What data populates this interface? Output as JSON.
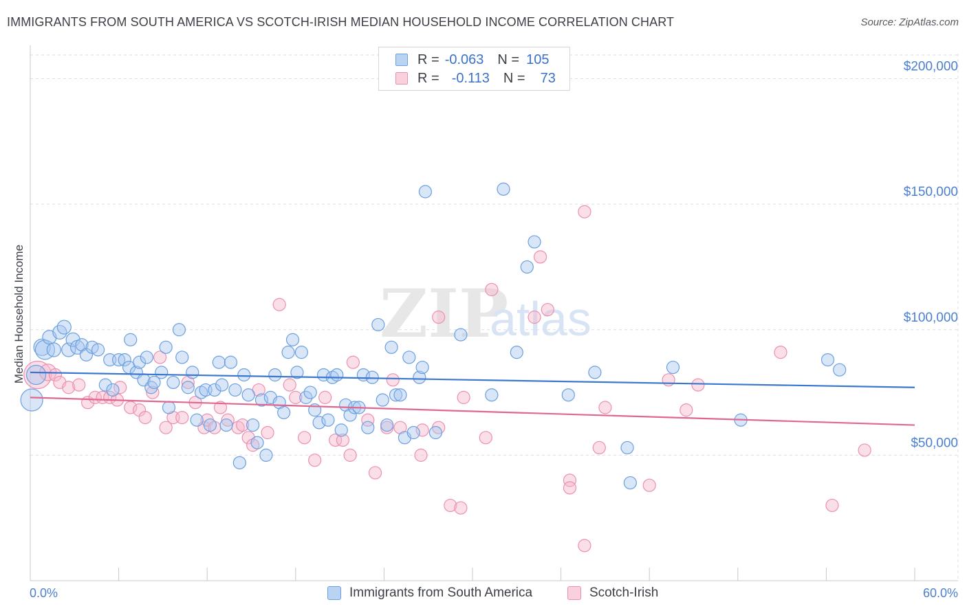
{
  "title": "IMMIGRANTS FROM SOUTH AMERICA VS SCOTCH-IRISH MEDIAN HOUSEHOLD INCOME CORRELATION CHART",
  "source": "Source: ZipAtlas.com",
  "watermark": {
    "zip": "ZIP",
    "atlas": "atlas"
  },
  "legend": {
    "rows": [
      {
        "r_label": "R =",
        "r_value": "-0.063",
        "n_label": "N =",
        "n_value": "105",
        "color": "#a8c8f0"
      },
      {
        "r_label": "R =",
        "r_value": "-0.113",
        "n_label": "N =",
        "n_value": "73",
        "color": "#f6b8cc"
      }
    ]
  },
  "bottom_legend": {
    "blue_label": "Immigrants from South America",
    "pink_label": "Scotch-Irish"
  },
  "chart_data": {
    "type": "scatter",
    "title": "IMMIGRANTS FROM SOUTH AMERICA VS SCOTCH-IRISH MEDIAN HOUSEHOLD INCOME CORRELATION CHART",
    "xlabel": "",
    "ylabel": "Median Household Income",
    "xlim": [
      0,
      60
    ],
    "ylim": [
      0,
      210000
    ],
    "x_tick_labels": [
      "0.0%",
      "60.0%"
    ],
    "y_ticks": [
      50000,
      100000,
      150000,
      200000
    ],
    "y_tick_labels": [
      "$50,000",
      "$100,000",
      "$150,000",
      "$200,000"
    ],
    "grid": true,
    "legend_position": "top-center",
    "colors": {
      "blue": "#6a9fe0",
      "blue_fill": "#a8c8f0",
      "pink": "#ec8fae",
      "pink_fill": "#f6b8cc",
      "blue_line": "#3a78d0",
      "pink_line": "#e06690"
    },
    "series": [
      {
        "name": "Immigrants from South America",
        "trend": {
          "x": [
            0,
            60
          ],
          "y": [
            83000,
            77000
          ]
        },
        "points": [
          [
            0.1,
            72000,
            16
          ],
          [
            0.4,
            82000,
            14
          ],
          [
            0.8,
            93000,
            12
          ],
          [
            1.0,
            92000,
            14
          ],
          [
            1.3,
            97000,
            10
          ],
          [
            1.6,
            92000,
            10
          ],
          [
            2.0,
            99000,
            10
          ],
          [
            2.3,
            101000,
            10
          ],
          [
            2.6,
            92000,
            10
          ],
          [
            2.9,
            96000,
            10
          ],
          [
            3.2,
            93000,
            10
          ],
          [
            3.5,
            94000,
            9
          ],
          [
            3.8,
            90000,
            9
          ],
          [
            4.2,
            93000,
            9
          ],
          [
            4.6,
            92000,
            9
          ],
          [
            5.1,
            78000,
            9
          ],
          [
            5.4,
            88000,
            9
          ],
          [
            5.6,
            76000,
            9
          ],
          [
            6.0,
            88000,
            9
          ],
          [
            6.4,
            88000,
            9
          ],
          [
            6.7,
            85000,
            9
          ],
          [
            6.8,
            96000,
            9
          ],
          [
            7.2,
            83000,
            9
          ],
          [
            7.4,
            87000,
            9
          ],
          [
            7.7,
            80000,
            9
          ],
          [
            7.9,
            89000,
            9
          ],
          [
            8.2,
            77000,
            9
          ],
          [
            8.4,
            79000,
            9
          ],
          [
            8.9,
            83000,
            9
          ],
          [
            9.2,
            93000,
            9
          ],
          [
            9.4,
            69000,
            9
          ],
          [
            9.7,
            79000,
            9
          ],
          [
            10.1,
            100000,
            9
          ],
          [
            10.3,
            89000,
            9
          ],
          [
            10.7,
            77000,
            9
          ],
          [
            11.0,
            83000,
            9
          ],
          [
            11.3,
            64000,
            9
          ],
          [
            11.6,
            75000,
            9
          ],
          [
            11.9,
            76000,
            9
          ],
          [
            12.2,
            62000,
            9
          ],
          [
            12.5,
            76000,
            9
          ],
          [
            12.8,
            87000,
            9
          ],
          [
            13.0,
            78000,
            9
          ],
          [
            13.3,
            62000,
            9
          ],
          [
            13.6,
            87000,
            9
          ],
          [
            13.9,
            76000,
            9
          ],
          [
            14.2,
            47000,
            9
          ],
          [
            14.5,
            82000,
            9
          ],
          [
            14.8,
            74000,
            9
          ],
          [
            15.1,
            62000,
            9
          ],
          [
            15.4,
            55000,
            9
          ],
          [
            15.7,
            72000,
            9
          ],
          [
            16.0,
            50000,
            9
          ],
          [
            16.3,
            73000,
            9
          ],
          [
            16.6,
            82000,
            9
          ],
          [
            16.9,
            71000,
            9
          ],
          [
            17.2,
            67000,
            9
          ],
          [
            17.5,
            91000,
            9
          ],
          [
            17.8,
            96000,
            9
          ],
          [
            18.1,
            83000,
            9
          ],
          [
            18.4,
            91000,
            9
          ],
          [
            18.7,
            73000,
            9
          ],
          [
            19.0,
            75000,
            9
          ],
          [
            19.3,
            68000,
            9
          ],
          [
            19.6,
            63000,
            9
          ],
          [
            19.9,
            82000,
            9
          ],
          [
            20.2,
            64000,
            9
          ],
          [
            20.5,
            81000,
            9
          ],
          [
            20.8,
            82000,
            9
          ],
          [
            21.1,
            60000,
            9
          ],
          [
            21.4,
            70000,
            9
          ],
          [
            21.7,
            66000,
            9
          ],
          [
            22.0,
            69000,
            9
          ],
          [
            22.3,
            69000,
            9
          ],
          [
            22.6,
            82000,
            9
          ],
          [
            22.9,
            61000,
            9
          ],
          [
            23.2,
            81000,
            9
          ],
          [
            23.6,
            102000,
            9
          ],
          [
            23.9,
            72000,
            9
          ],
          [
            24.2,
            62000,
            9
          ],
          [
            24.5,
            93000,
            9
          ],
          [
            24.8,
            74000,
            9
          ],
          [
            25.1,
            74000,
            9
          ],
          [
            25.4,
            57000,
            9
          ],
          [
            25.7,
            89000,
            9
          ],
          [
            26.0,
            59000,
            9
          ],
          [
            26.4,
            81000,
            9
          ],
          [
            26.6,
            85000,
            9
          ],
          [
            26.8,
            155000,
            9
          ],
          [
            27.5,
            59000,
            9
          ],
          [
            29.2,
            98000,
            9
          ],
          [
            31.3,
            74000,
            9
          ],
          [
            32.1,
            156000,
            9
          ],
          [
            33.0,
            91000,
            9
          ],
          [
            33.7,
            125000,
            9
          ],
          [
            34.2,
            135000,
            9
          ],
          [
            36.5,
            74000,
            9
          ],
          [
            38.3,
            83000,
            9
          ],
          [
            40.5,
            53000,
            9
          ],
          [
            40.7,
            39000,
            9
          ],
          [
            43.6,
            85000,
            9
          ],
          [
            48.2,
            64000,
            9
          ],
          [
            54.1,
            88000,
            9
          ],
          [
            54.9,
            84000,
            9
          ]
        ]
      },
      {
        "name": "Scotch-Irish",
        "trend": {
          "x": [
            0,
            60
          ],
          "y": [
            73000,
            62000
          ]
        },
        "points": [
          [
            0.5,
            82000,
            20
          ],
          [
            1.2,
            83000,
            12
          ],
          [
            1.7,
            82000,
            9
          ],
          [
            2.0,
            79000,
            9
          ],
          [
            2.6,
            77000,
            9
          ],
          [
            3.3,
            78000,
            9
          ],
          [
            3.9,
            71000,
            9
          ],
          [
            4.4,
            73000,
            9
          ],
          [
            4.9,
            73000,
            9
          ],
          [
            5.4,
            73000,
            9
          ],
          [
            5.9,
            72000,
            9
          ],
          [
            6.1,
            77000,
            9
          ],
          [
            6.8,
            69000,
            9
          ],
          [
            7.4,
            68000,
            9
          ],
          [
            7.8,
            65000,
            9
          ],
          [
            8.3,
            75000,
            9
          ],
          [
            8.8,
            89000,
            9
          ],
          [
            9.2,
            61000,
            9
          ],
          [
            9.7,
            65000,
            9
          ],
          [
            10.3,
            65000,
            9
          ],
          [
            10.7,
            79000,
            9
          ],
          [
            11.2,
            71000,
            9
          ],
          [
            11.8,
            61000,
            9
          ],
          [
            12.0,
            64000,
            9
          ],
          [
            12.5,
            61000,
            9
          ],
          [
            12.9,
            69000,
            9
          ],
          [
            13.4,
            64000,
            9
          ],
          [
            14.1,
            61000,
            9
          ],
          [
            14.4,
            62000,
            9
          ],
          [
            14.8,
            57000,
            9
          ],
          [
            15.1,
            54000,
            9
          ],
          [
            15.5,
            76000,
            9
          ],
          [
            16.1,
            59000,
            9
          ],
          [
            16.9,
            110000,
            9
          ],
          [
            17.6,
            78000,
            9
          ],
          [
            18.0,
            73000,
            9
          ],
          [
            18.6,
            57000,
            9
          ],
          [
            19.3,
            48000,
            9
          ],
          [
            20.0,
            73000,
            9
          ],
          [
            20.7,
            56000,
            9
          ],
          [
            21.2,
            56000,
            9
          ],
          [
            21.7,
            50000,
            9
          ],
          [
            21.9,
            87000,
            9
          ],
          [
            22.9,
            64000,
            9
          ],
          [
            23.4,
            43000,
            9
          ],
          [
            24.2,
            61000,
            9
          ],
          [
            24.6,
            80000,
            9
          ],
          [
            25.1,
            61000,
            9
          ],
          [
            26.5,
            50000,
            9
          ],
          [
            26.6,
            60000,
            9
          ],
          [
            27.7,
            61000,
            9
          ],
          [
            27.7,
            105000,
            9
          ],
          [
            28.5,
            30000,
            9
          ],
          [
            29.2,
            29000,
            9
          ],
          [
            29.4,
            73000,
            9
          ],
          [
            30.9,
            57000,
            9
          ],
          [
            31.3,
            116000,
            9
          ],
          [
            34.2,
            105000,
            9
          ],
          [
            34.6,
            129000,
            9
          ],
          [
            35.1,
            108000,
            9
          ],
          [
            36.6,
            40000,
            9
          ],
          [
            36.6,
            37000,
            9
          ],
          [
            37.6,
            14000,
            9
          ],
          [
            37.6,
            147000,
            9
          ],
          [
            38.6,
            53000,
            9
          ],
          [
            39.0,
            69000,
            9
          ],
          [
            42.0,
            38000,
            9
          ],
          [
            43.3,
            80000,
            9
          ],
          [
            44.5,
            68000,
            9
          ],
          [
            45.3,
            78000,
            9
          ],
          [
            50.9,
            91000,
            9
          ],
          [
            54.4,
            30000,
            9
          ],
          [
            56.6,
            52000,
            9
          ]
        ]
      }
    ]
  }
}
